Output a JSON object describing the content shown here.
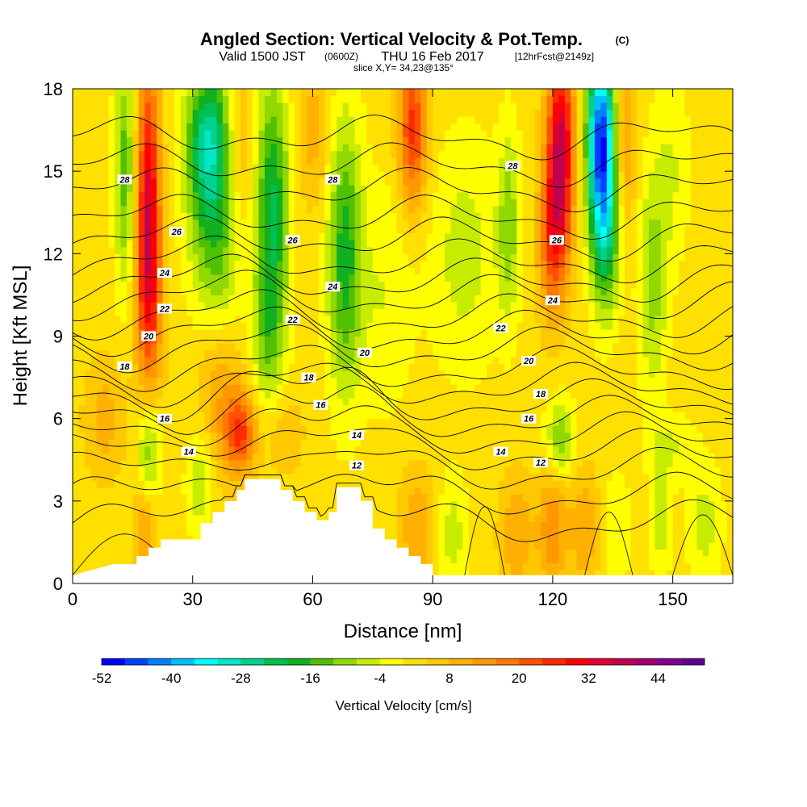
{
  "title": {
    "main": "Angled Section: Vertical Velocity & Pot.Temp.",
    "main_units": "(C)",
    "valid_a": "Valid 1500 JST",
    "valid_utc": "(0600Z)",
    "valid_b": "THU 16 Feb 2017",
    "valid_fcst": "[12hrFcst@2149z]",
    "slice": "slice X,Y= 34,23@135°"
  },
  "chart_data": {
    "type": "heatmap",
    "xlabel": "Distance [nm]",
    "ylabel": "Height [Kft MSL]",
    "xlim": [
      0,
      165
    ],
    "ylim": [
      0,
      18
    ],
    "x_ticks": [
      "0",
      "30",
      "60",
      "90",
      "120",
      "150"
    ],
    "y_ticks": [
      "0",
      "3",
      "6",
      "9",
      "12",
      "15",
      "18"
    ],
    "colorbar": {
      "label": "Vertical Velocity [cm/s]",
      "tick_labels": [
        "-52",
        "-40",
        "-28",
        "-16",
        "-4",
        "8",
        "20",
        "32",
        "44"
      ],
      "levels_min": -52,
      "level_step": 4,
      "colors": [
        "#0000ff",
        "#0040ff",
        "#0080ff",
        "#00bfff",
        "#00ffff",
        "#00e8c8",
        "#00d090",
        "#00c050",
        "#10b020",
        "#50c000",
        "#90d800",
        "#c8ec00",
        "#ffff00",
        "#ffe000",
        "#ffc800",
        "#ffb000",
        "#ff9800",
        "#ff7800",
        "#ff5000",
        "#ff2800",
        "#ff0000",
        "#e00030",
        "#c00050",
        "#a00070",
        "#800090",
        "#600090"
      ]
    },
    "background_velocity": 2,
    "updrafts_downdrafts": [
      {
        "x": 19,
        "z": 14,
        "sx": 2.0,
        "sz": 3.5,
        "w": 30
      },
      {
        "x": 19,
        "z": 10,
        "sx": 2.5,
        "sz": 2.5,
        "w": 14
      },
      {
        "x": 13,
        "z": 15,
        "sx": 1.8,
        "sz": 3.0,
        "w": -16
      },
      {
        "x": 34,
        "z": 16,
        "sx": 4.0,
        "sz": 2.0,
        "w": -30
      },
      {
        "x": 36,
        "z": 12,
        "sx": 4.5,
        "sz": 2.0,
        "w": -14
      },
      {
        "x": 50,
        "z": 14,
        "sx": 3.0,
        "sz": 3.2,
        "w": -22
      },
      {
        "x": 49,
        "z": 9,
        "sx": 2.8,
        "sz": 2.2,
        "w": -12
      },
      {
        "x": 42,
        "z": 16,
        "sx": 2.5,
        "sz": 2.5,
        "w": 8
      },
      {
        "x": 60,
        "z": 16.5,
        "sx": 3.0,
        "sz": 2.0,
        "w": 8
      },
      {
        "x": 68,
        "z": 12,
        "sx": 3.0,
        "sz": 3.5,
        "w": -20
      },
      {
        "x": 85,
        "z": 16.5,
        "sx": 2.5,
        "sz": 2.0,
        "w": 24
      },
      {
        "x": 98,
        "z": 12,
        "sx": 6.0,
        "sz": 3.0,
        "w": -8
      },
      {
        "x": 109,
        "z": 13,
        "sx": 2.0,
        "sz": 2.5,
        "w": -12
      },
      {
        "x": 122,
        "z": 16,
        "sx": 2.4,
        "sz": 2.5,
        "w": 34
      },
      {
        "x": 120,
        "z": 12.5,
        "sx": 2.5,
        "sz": 2.0,
        "w": 20
      },
      {
        "x": 132,
        "z": 16.5,
        "sx": 2.5,
        "sz": 2.2,
        "w": -44
      },
      {
        "x": 133,
        "z": 13,
        "sx": 2.5,
        "sz": 2.2,
        "w": -26
      },
      {
        "x": 138,
        "z": 16,
        "sx": 2.0,
        "sz": 2.0,
        "w": 12
      },
      {
        "x": 145,
        "z": 11,
        "sx": 2.5,
        "sz": 3.0,
        "w": -12
      },
      {
        "x": 150,
        "z": 15,
        "sx": 3.0,
        "sz": 2.5,
        "w": -6
      },
      {
        "x": 42,
        "z": 5.5,
        "sx": 2.5,
        "sz": 1.0,
        "w": 20
      },
      {
        "x": 37,
        "z": 6.5,
        "sx": 4.0,
        "sz": 2.0,
        "w": 10
      },
      {
        "x": 19,
        "z": 4.8,
        "sx": 2.0,
        "sz": 1.5,
        "w": -14
      },
      {
        "x": 18,
        "z": 2.0,
        "sx": 2.0,
        "sz": 1.2,
        "w": 12
      },
      {
        "x": 8,
        "z": 6.0,
        "sx": 3.5,
        "sz": 1.5,
        "w": 8
      },
      {
        "x": 32,
        "z": 3.8,
        "sx": 2.5,
        "sz": 1.5,
        "w": -10
      },
      {
        "x": 52,
        "z": 5.5,
        "sx": 4.0,
        "sz": 1.2,
        "w": 6
      },
      {
        "x": 86,
        "z": 2.0,
        "sx": 3.0,
        "sz": 1.5,
        "w": 10
      },
      {
        "x": 95,
        "z": 1.8,
        "sx": 2.5,
        "sz": 1.5,
        "w": -8
      },
      {
        "x": 111,
        "z": 1.8,
        "sx": 3.0,
        "sz": 1.5,
        "w": 10
      },
      {
        "x": 122,
        "z": 5.3,
        "sx": 2.5,
        "sz": 1.0,
        "w": -14
      },
      {
        "x": 120,
        "z": 2.0,
        "sx": 2.5,
        "sz": 1.5,
        "w": 14
      },
      {
        "x": 128,
        "z": 2.0,
        "sx": 2.5,
        "sz": 1.5,
        "w": 10
      },
      {
        "x": 136,
        "z": 2.0,
        "sx": 2.5,
        "sz": 1.5,
        "w": -6
      },
      {
        "x": 147,
        "z": 2.3,
        "sx": 2.0,
        "sz": 1.5,
        "w": -8
      },
      {
        "x": 158,
        "z": 2.2,
        "sx": 3.0,
        "sz": 1.5,
        "w": -8
      },
      {
        "x": 150,
        "z": 5.0,
        "sx": 4.0,
        "sz": 0.8,
        "w": -6
      },
      {
        "x": 78,
        "z": 10.5,
        "sx": 5.0,
        "sz": 3.0,
        "w": -6
      }
    ],
    "isentrope_levels": [
      10,
      11,
      12,
      13,
      14,
      15,
      16,
      17,
      18,
      19,
      20,
      21,
      22,
      23,
      24,
      25,
      26,
      27,
      28,
      29
    ],
    "isentrope_base_heights_kft": [
      2.2,
      3.2,
      4.1,
      4.8,
      5.4,
      6.0,
      6.6,
      7.2,
      7.8,
      8.5,
      9.1,
      9.7,
      10.4,
      11.0,
      11.7,
      12.5,
      13.3,
      14.3,
      15.2,
      16.2
    ],
    "isentrope_labels": [
      {
        "text": "28",
        "x": 13,
        "z": 14.7
      },
      {
        "text": "26",
        "x": 26,
        "z": 12.8
      },
      {
        "text": "24",
        "x": 23,
        "z": 11.3
      },
      {
        "text": "22",
        "x": 23,
        "z": 10.0
      },
      {
        "text": "20",
        "x": 19,
        "z": 9.0
      },
      {
        "text": "18",
        "x": 13,
        "z": 7.9
      },
      {
        "text": "16",
        "x": 23,
        "z": 6.0
      },
      {
        "text": "14",
        "x": 29,
        "z": 4.8
      },
      {
        "text": "28",
        "x": 65,
        "z": 14.7
      },
      {
        "text": "26",
        "x": 55,
        "z": 12.5
      },
      {
        "text": "24",
        "x": 65,
        "z": 10.8
      },
      {
        "text": "22",
        "x": 55,
        "z": 9.6
      },
      {
        "text": "20",
        "x": 73,
        "z": 8.4
      },
      {
        "text": "18",
        "x": 59,
        "z": 7.5
      },
      {
        "text": "16",
        "x": 62,
        "z": 6.5
      },
      {
        "text": "14",
        "x": 71,
        "z": 5.4
      },
      {
        "text": "12",
        "x": 71,
        "z": 4.3
      },
      {
        "text": "28",
        "x": 110,
        "z": 15.2
      },
      {
        "text": "26",
        "x": 121,
        "z": 12.5
      },
      {
        "text": "24",
        "x": 120,
        "z": 10.3
      },
      {
        "text": "22",
        "x": 107,
        "z": 9.3
      },
      {
        "text": "20",
        "x": 114,
        "z": 8.1
      },
      {
        "text": "18",
        "x": 117,
        "z": 6.9
      },
      {
        "text": "16",
        "x": 114,
        "z": 6.0
      },
      {
        "text": "14",
        "x": 107,
        "z": 4.8
      },
      {
        "text": "12",
        "x": 117,
        "z": 4.4
      }
    ],
    "terrain_profile": [
      {
        "x": 0,
        "z": 0.3
      },
      {
        "x": 10,
        "z": 0.7
      },
      {
        "x": 16,
        "z": 0.7
      },
      {
        "x": 16,
        "z": 1.0
      },
      {
        "x": 19,
        "z": 1.0
      },
      {
        "x": 19,
        "z": 1.3
      },
      {
        "x": 22,
        "z": 1.3
      },
      {
        "x": 22,
        "z": 1.6
      },
      {
        "x": 25,
        "z": 1.6
      },
      {
        "x": 25,
        "z": 1.6
      },
      {
        "x": 32,
        "z": 1.6
      },
      {
        "x": 32,
        "z": 2.2
      },
      {
        "x": 35,
        "z": 2.2
      },
      {
        "x": 35,
        "z": 2.6
      },
      {
        "x": 38,
        "z": 2.6
      },
      {
        "x": 38,
        "z": 3.0
      },
      {
        "x": 41,
        "z": 3.0
      },
      {
        "x": 41,
        "z": 3.4
      },
      {
        "x": 43,
        "z": 3.4
      },
      {
        "x": 43,
        "z": 3.8
      },
      {
        "x": 52,
        "z": 3.8
      },
      {
        "x": 52,
        "z": 3.4
      },
      {
        "x": 55,
        "z": 3.4
      },
      {
        "x": 55,
        "z": 3.0
      },
      {
        "x": 58,
        "z": 3.0
      },
      {
        "x": 58,
        "z": 2.6
      },
      {
        "x": 61,
        "z": 2.6
      },
      {
        "x": 61,
        "z": 2.3
      },
      {
        "x": 64,
        "z": 2.3
      },
      {
        "x": 64,
        "z": 2.6
      },
      {
        "x": 66,
        "z": 2.6
      },
      {
        "x": 66,
        "z": 3.5
      },
      {
        "x": 72,
        "z": 3.5
      },
      {
        "x": 72,
        "z": 3.0
      },
      {
        "x": 75,
        "z": 3.0
      },
      {
        "x": 75,
        "z": 2.6
      },
      {
        "x": 75,
        "z": 2.0
      },
      {
        "x": 78,
        "z": 2.0
      },
      {
        "x": 78,
        "z": 1.6
      },
      {
        "x": 81,
        "z": 1.6
      },
      {
        "x": 81,
        "z": 1.3
      },
      {
        "x": 84,
        "z": 1.3
      },
      {
        "x": 84,
        "z": 1.0
      },
      {
        "x": 87,
        "z": 1.0
      },
      {
        "x": 87,
        "z": 0.7
      },
      {
        "x": 90,
        "z": 0.7
      },
      {
        "x": 90,
        "z": 0.3
      },
      {
        "x": 165,
        "z": 0.3
      }
    ]
  }
}
